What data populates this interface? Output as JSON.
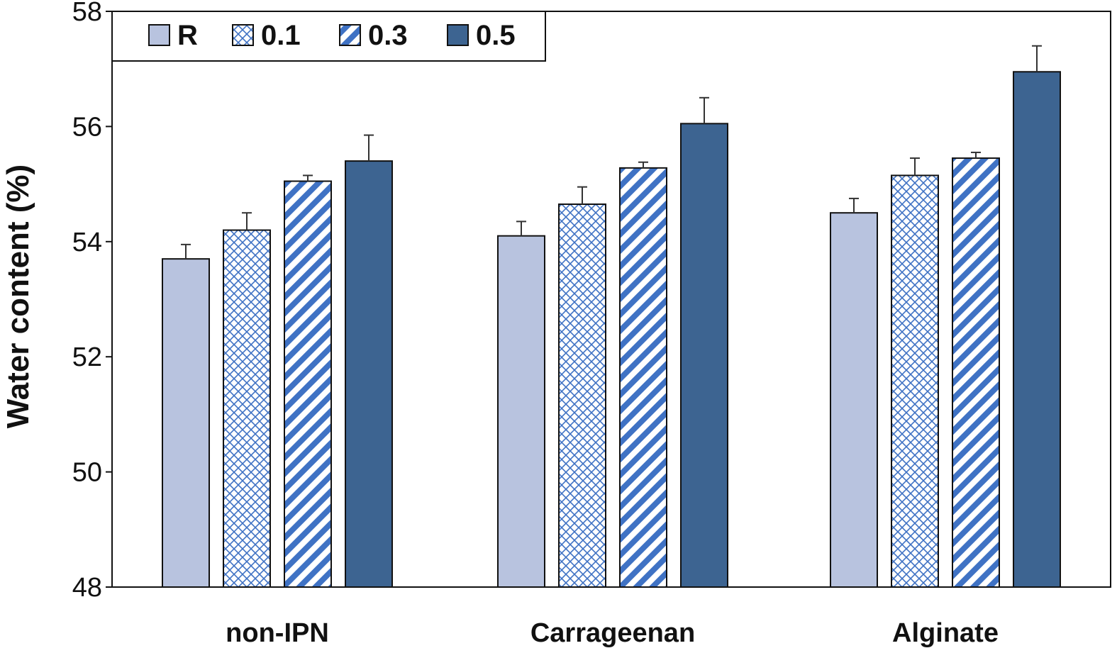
{
  "chart_data": {
    "type": "bar",
    "ylabel": "Water content (%)",
    "xlabel": "",
    "ylim": [
      48,
      58
    ],
    "yticks": [
      48,
      50,
      52,
      54,
      56,
      58
    ],
    "categories": [
      "non-IPN",
      "Carrageenan",
      "Alginate"
    ],
    "series": [
      {
        "name": "R",
        "values": [
          53.7,
          54.1,
          54.5
        ],
        "errors": [
          0.25,
          0.25,
          0.25
        ],
        "pattern": "solid-light"
      },
      {
        "name": "0.1",
        "values": [
          54.2,
          54.65,
          55.15
        ],
        "errors": [
          0.3,
          0.3,
          0.3
        ],
        "pattern": "crosshatch"
      },
      {
        "name": "0.3",
        "values": [
          55.05,
          55.28,
          55.45
        ],
        "errors": [
          0.1,
          0.1,
          0.1
        ],
        "pattern": "diagonal"
      },
      {
        "name": "0.5",
        "values": [
          55.4,
          56.05,
          56.95
        ],
        "errors": [
          0.45,
          0.45,
          0.45
        ],
        "pattern": "solid-dark"
      }
    ],
    "legend_position": "top-left",
    "grid": false,
    "colors": {
      "light": "#b8c3df",
      "pattern": "#3f72c4",
      "dark": "#3d6491",
      "edge": "#111111"
    }
  }
}
